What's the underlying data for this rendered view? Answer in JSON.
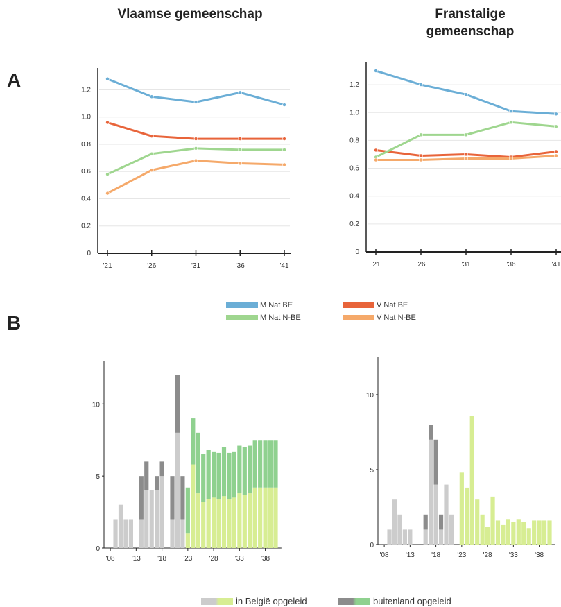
{
  "titles": {
    "left": "Vlaamse gemeenschap",
    "right": "Franstalige gemeenschap"
  },
  "panels": {
    "a": "A",
    "b": "B"
  },
  "colors": {
    "m_be": "#6baed6",
    "v_be": "#e8643a",
    "m_nbe": "#9fd68f",
    "v_nbe": "#f5a96a",
    "be_past": "#cccccc",
    "be_future": "#d7ed93",
    "abroad_past": "#8c8c8c",
    "abroad_future": "#8fd18f"
  },
  "legend_a": {
    "m_be": "M Nat BE",
    "v_be": "V Nat BE",
    "m_nbe": "M Nat N-BE",
    "v_nbe": "V Nat N-BE"
  },
  "legend_b": {
    "be": "in België opgeleid",
    "abroad": "buitenland opgeleid"
  },
  "chart_data": [
    {
      "type": "line",
      "x": [
        "'21",
        "'26",
        "'31",
        "'36",
        "'41"
      ],
      "ylim": [
        0,
        1.35
      ],
      "yticks": [
        "0",
        "0.2",
        "0.4",
        "0.6",
        "0.8",
        "1.0",
        "1.2"
      ],
      "series": [
        {
          "key": "m_be",
          "values": [
            1.28,
            1.15,
            1.11,
            1.18,
            1.09
          ]
        },
        {
          "key": "v_be",
          "values": [
            0.96,
            0.86,
            0.84,
            0.84,
            0.84
          ]
        },
        {
          "key": "m_nbe",
          "values": [
            0.58,
            0.73,
            0.77,
            0.76,
            0.76
          ]
        },
        {
          "key": "v_nbe",
          "values": [
            0.44,
            0.61,
            0.68,
            0.66,
            0.65
          ]
        }
      ]
    },
    {
      "type": "line",
      "x": [
        "'21",
        "'26",
        "'31",
        "'36",
        "'41"
      ],
      "ylim": [
        0,
        1.35
      ],
      "yticks": [
        "0",
        "0.2",
        "0.4",
        "0.6",
        "0.8",
        "1.0",
        "1.2"
      ],
      "series": [
        {
          "key": "m_be",
          "values": [
            1.3,
            1.2,
            1.13,
            1.01,
            0.99
          ]
        },
        {
          "key": "v_be",
          "values": [
            0.73,
            0.69,
            0.7,
            0.68,
            0.72
          ]
        },
        {
          "key": "m_nbe",
          "values": [
            0.68,
            0.84,
            0.84,
            0.93,
            0.9
          ]
        },
        {
          "key": "v_nbe",
          "values": [
            0.66,
            0.66,
            0.67,
            0.67,
            0.69
          ]
        }
      ]
    },
    {
      "type": "bar",
      "stacked": true,
      "x_start": 2008,
      "forecast_from": 2023,
      "xticks": [
        "'08",
        "'13",
        "'18",
        "'23",
        "'28",
        "'33",
        "'38"
      ],
      "yticks": [
        "0",
        "5",
        "10"
      ],
      "ylim": [
        0,
        13
      ],
      "be": [
        0,
        2,
        3,
        2,
        2,
        0,
        2,
        4,
        4,
        4,
        5,
        0,
        2,
        8,
        2,
        1,
        5.8,
        3.8,
        3.2,
        3.4,
        3.5,
        3.4,
        3.6,
        3.4,
        3.5,
        3.8,
        3.7,
        3.8,
        4.2,
        4.2,
        4.2,
        4.2,
        4.2
      ],
      "abroad": [
        0,
        0,
        0,
        0,
        0,
        0,
        3,
        2,
        0,
        1,
        1,
        0,
        3,
        4,
        3,
        3.2,
        3.2,
        4.2,
        3.3,
        3.4,
        3.2,
        3.2,
        3.4,
        3.2,
        3.2,
        3.3,
        3.3,
        3.3,
        3.3,
        3.3,
        3.3,
        3.3,
        3.3
      ]
    },
    {
      "type": "bar",
      "stacked": true,
      "x_start": 2008,
      "forecast_from": 2023,
      "xticks": [
        "'08",
        "'13",
        "'18",
        "'23",
        "'28",
        "'33",
        "'38"
      ],
      "yticks": [
        "0",
        "5",
        "10"
      ],
      "ylim": [
        0,
        12.5
      ],
      "be": [
        0,
        1,
        3,
        2,
        1,
        1,
        0,
        0,
        1,
        7,
        4,
        1,
        4,
        2,
        0,
        4.8,
        3.8,
        8.6,
        3,
        2,
        1.2,
        3.2,
        1.6,
        1.3,
        1.7,
        1.5,
        1.7,
        1.5,
        1.1,
        1.6,
        1.6,
        1.6,
        1.6
      ],
      "abroad": [
        0,
        0,
        0,
        0,
        0,
        0,
        0,
        0,
        1,
        1,
        3,
        1,
        0,
        0,
        0,
        0,
        0,
        0,
        0,
        0,
        0,
        0,
        0,
        0,
        0,
        0,
        0,
        0,
        0,
        0,
        0,
        0,
        0
      ]
    }
  ]
}
